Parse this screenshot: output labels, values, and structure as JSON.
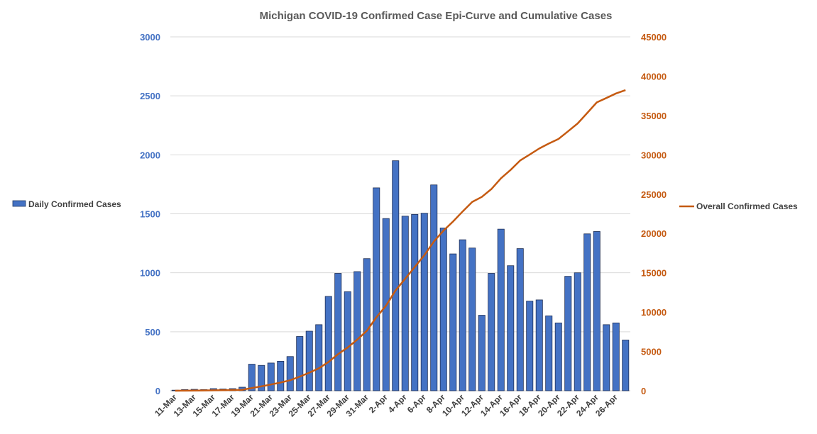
{
  "chart_data": {
    "type": "bar+line",
    "title": "Michigan COVID-19 Confirmed Case Epi-Curve and Cumulative Cases",
    "categories": [
      "11-Mar",
      "12-Mar",
      "13-Mar",
      "14-Mar",
      "15-Mar",
      "16-Mar",
      "17-Mar",
      "18-Mar",
      "19-Mar",
      "20-Mar",
      "21-Mar",
      "22-Mar",
      "23-Mar",
      "24-Mar",
      "25-Mar",
      "26-Mar",
      "27-Mar",
      "28-Mar",
      "29-Mar",
      "30-Mar",
      "31-Mar",
      "1-Apr",
      "2-Apr",
      "3-Apr",
      "4-Apr",
      "5-Apr",
      "6-Apr",
      "7-Apr",
      "8-Apr",
      "9-Apr",
      "10-Apr",
      "11-Apr",
      "12-Apr",
      "13-Apr",
      "14-Apr",
      "15-Apr",
      "16-Apr",
      "17-Apr",
      "18-Apr",
      "19-Apr",
      "20-Apr",
      "21-Apr",
      "22-Apr",
      "23-Apr",
      "24-Apr",
      "25-Apr",
      "26-Apr",
      "27-Apr"
    ],
    "x_tick_labels": [
      "11-Mar",
      "13-Mar",
      "15-Mar",
      "17-Mar",
      "19-Mar",
      "21-Mar",
      "23-Mar",
      "25-Mar",
      "27-Mar",
      "29-Mar",
      "31-Mar",
      "2-Apr",
      "4-Apr",
      "6-Apr",
      "8-Apr",
      "10-Apr",
      "12-Apr",
      "14-Apr",
      "16-Apr",
      "18-Apr",
      "20-Apr",
      "22-Apr",
      "24-Apr",
      "26-Apr"
    ],
    "series": [
      {
        "name": "Daily Confirmed Cases",
        "type": "bar",
        "axis": "left",
        "color": "#4472c4",
        "values": [
          5,
          10,
          12,
          10,
          18,
          15,
          18,
          30,
          225,
          215,
          235,
          250,
          290,
          460,
          505,
          560,
          800,
          995,
          840,
          1010,
          1120,
          1720,
          1460,
          1950,
          1480,
          1495,
          1505,
          1745,
          1380,
          1160,
          1280,
          1210,
          640,
          995,
          1370,
          1060,
          1205,
          760,
          770,
          635,
          575,
          970,
          1000,
          1330,
          1350,
          560,
          575,
          430
        ]
      },
      {
        "name": "Overall Confirmed Cases",
        "type": "line",
        "axis": "right",
        "color": "#c55a11",
        "values": [
          5,
          15,
          27,
          37,
          55,
          70,
          88,
          118,
          343,
          558,
          793,
          1043,
          1333,
          1793,
          2298,
          2858,
          3658,
          4653,
          5493,
          6503,
          7623,
          9343,
          10803,
          12753,
          14233,
          15728,
          17233,
          18978,
          20358,
          21518,
          22798,
          24008,
          24648,
          25643,
          27013,
          28073,
          29278,
          30038,
          30808,
          31443,
          32018,
          32988,
          33988,
          35318,
          36668,
          37228,
          37803,
          38233
        ]
      }
    ],
    "y_left": {
      "min": 0,
      "max": 3000,
      "ticks": [
        0,
        500,
        1000,
        1500,
        2000,
        2500,
        3000
      ]
    },
    "y_right": {
      "min": 0,
      "max": 45000,
      "ticks": [
        0,
        5000,
        10000,
        15000,
        20000,
        25000,
        30000,
        35000,
        40000,
        45000
      ]
    },
    "grid": true,
    "legend": {
      "left_entry": "Daily Confirmed Cases",
      "right_entry": "Overall Confirmed Cases",
      "placement": "sides"
    }
  }
}
